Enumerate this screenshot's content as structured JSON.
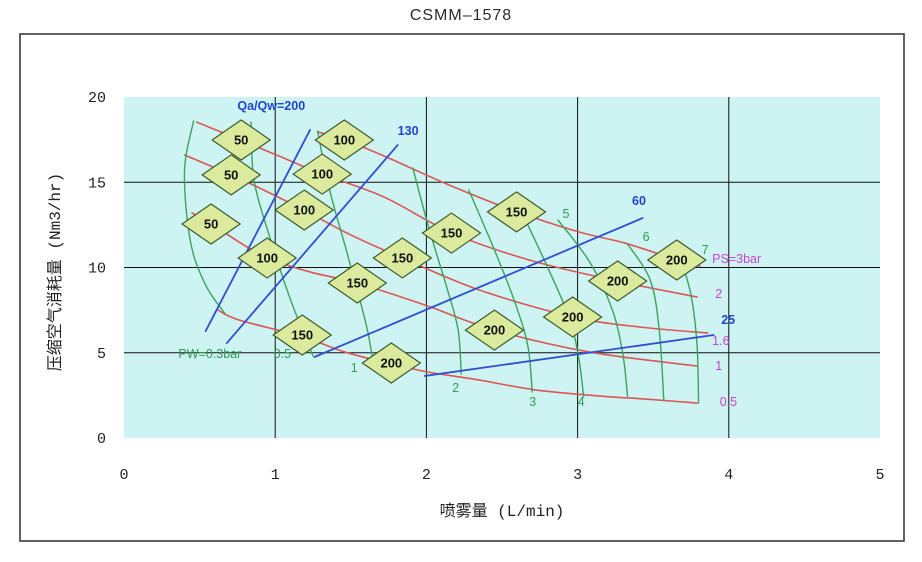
{
  "title": "CSMM–1578",
  "chart_data": {
    "type": "line",
    "title": "CSMM–1578",
    "xlabel": "喷雾量 (L/min)",
    "ylabel": "压缩空气消耗量 (Nm3/hr)",
    "xlim": [
      0,
      5
    ],
    "ylim": [
      0,
      20
    ],
    "xticks": [
      0,
      1,
      2,
      3,
      4,
      5
    ],
    "yticks": [
      0,
      5,
      10,
      15,
      20
    ],
    "grid": true,
    "legend_position": "none",
    "colors": {
      "plot_background": "#cdf3f3",
      "figure_border": "#3a3a3a",
      "grid": "#111111",
      "air_pressure_curves": "#dd5555",
      "air_pressure_labels": "#cc44cc",
      "water_pressure_curves": "#3aa45c",
      "water_pressure_labels": "#2e9e50",
      "ratio_lines": "#2f4fd0",
      "ratio_labels": "#2244cc",
      "marker_fill": "#dcea9e",
      "marker_stroke": "#3c5a2a"
    },
    "families": [
      {
        "name": "air-pressure-red",
        "meaning": "compressed air pressure PS (bar)",
        "color": "#dd5555",
        "label_color": "#cc44cc",
        "width": 1.6,
        "label_weight": 400,
        "curves": [
          {
            "label": "PS=3bar",
            "label_at": [
              3.89,
              10.26
            ],
            "points": [
              [
                1.28,
                17.95
              ],
              [
                1.46,
                17.48
              ],
              [
                1.72,
                16.54
              ],
              [
                2.15,
                14.84
              ],
              [
                2.6,
                13.26
              ],
              [
                3.01,
                12.08
              ],
              [
                3.31,
                11.44
              ],
              [
                3.66,
                10.44
              ],
              [
                3.81,
                10.09
              ]
            ]
          },
          {
            "label": "2",
            "label_at": [
              3.91,
              8.21
            ],
            "points": [
              [
                0.48,
                18.53
              ],
              [
                0.77,
                17.48
              ],
              [
                1.04,
                16.48
              ],
              [
                1.31,
                15.48
              ],
              [
                1.72,
                14.13
              ],
              [
                2.17,
                12.02
              ],
              [
                2.68,
                10.44
              ],
              [
                3.26,
                9.21
              ],
              [
                3.79,
                8.27
              ]
            ]
          },
          {
            "label": "1.6",
            "label_at": [
              3.89,
              5.45
            ],
            "points": [
              [
                0.4,
                16.6
              ],
              [
                0.71,
                15.43
              ],
              [
                0.95,
                14.43
              ],
              [
                1.19,
                13.37
              ],
              [
                1.5,
                11.91
              ],
              [
                1.84,
                10.56
              ],
              [
                2.35,
                8.68
              ],
              [
                2.97,
                7.1
              ],
              [
                3.41,
                6.51
              ],
              [
                3.86,
                6.16
              ]
            ]
          },
          {
            "label": "1",
            "label_at": [
              3.91,
              3.99
            ],
            "points": [
              [
                0.45,
                13.2
              ],
              [
                0.58,
                12.55
              ],
              [
                0.76,
                11.5
              ],
              [
                0.95,
                10.56
              ],
              [
                1.23,
                9.74
              ],
              [
                1.54,
                9.09
              ],
              [
                1.99,
                7.8
              ],
              [
                2.45,
                6.33
              ],
              [
                3.08,
                5.04
              ],
              [
                3.79,
                4.22
              ]
            ]
          },
          {
            "label": "0.5",
            "label_at": [
              3.94,
              1.88
            ],
            "points": [
              [
                0.62,
                7.51
              ],
              [
                0.76,
                6.92
              ],
              [
                1.18,
                5.95
              ],
              [
                1.46,
                5.04
              ],
              [
                1.77,
                4.35
              ],
              [
                2.01,
                3.87
              ],
              [
                2.35,
                3.4
              ],
              [
                2.72,
                2.82
              ],
              [
                3.15,
                2.46
              ],
              [
                3.44,
                2.29
              ],
              [
                3.79,
                2.05
              ]
            ]
          }
        ]
      },
      {
        "name": "water-pressure-green",
        "meaning": "water pressure PW (bar)",
        "color": "#3aa45c",
        "label_color": "#2e9e50",
        "width": 1.4,
        "label_weight": 400,
        "curves": [
          {
            "label": "PW=0.3bar",
            "label_at": [
              0.36,
              4.69
            ],
            "points": [
              [
                0.46,
                18.59
              ],
              [
                0.4,
                15.6
              ],
              [
                0.44,
                11.5
              ],
              [
                0.54,
                8.97
              ],
              [
                0.67,
                7.27
              ]
            ]
          },
          {
            "label": "0.5",
            "label_at": [
              0.99,
              4.69
            ],
            "points": [
              [
                0.84,
                18.53
              ],
              [
                0.86,
                15.13
              ],
              [
                0.97,
                11.61
              ],
              [
                1.09,
                8.39
              ],
              [
                1.18,
                6.33
              ],
              [
                1.25,
                4.81
              ]
            ]
          },
          {
            "label": "1",
            "label_at": [
              1.5,
              3.87
            ],
            "points": [
              [
                1.28,
                18.0
              ],
              [
                1.36,
                14.55
              ],
              [
                1.47,
                11.03
              ],
              [
                1.56,
                8.09
              ],
              [
                1.61,
                6.33
              ],
              [
                1.64,
                4.87
              ]
            ]
          },
          {
            "label": "2",
            "label_at": [
              2.17,
              2.7
            ],
            "points": [
              [
                1.91,
                15.84
              ],
              [
                2.02,
                12.2
              ],
              [
                2.14,
                8.68
              ],
              [
                2.21,
                6.33
              ],
              [
                2.23,
                3.75
              ]
            ]
          },
          {
            "label": "3",
            "label_at": [
              2.68,
              1.88
            ],
            "points": [
              [
                2.28,
                14.55
              ],
              [
                2.45,
                11.03
              ],
              [
                2.58,
                8.09
              ],
              [
                2.67,
                5.45
              ],
              [
                2.7,
                2.7
              ]
            ]
          },
          {
            "label": "4",
            "label_at": [
              3.0,
              1.88
            ],
            "points": [
              [
                2.63,
                13.26
              ],
              [
                2.81,
                9.85
              ],
              [
                2.95,
                6.92
              ],
              [
                3.01,
                4.57
              ],
              [
                3.04,
                2.4
              ]
            ]
          },
          {
            "label": "5",
            "label_at": [
              2.9,
              12.9
            ],
            "points": [
              [
                2.87,
                12.79
              ],
              [
                3.08,
                10.32
              ],
              [
                3.23,
                7.51
              ],
              [
                3.3,
                4.87
              ],
              [
                3.33,
                2.46
              ]
            ]
          },
          {
            "label": "6",
            "label_at": [
              3.43,
              11.55
            ],
            "points": [
              [
                3.33,
                11.38
              ],
              [
                3.48,
                9.27
              ],
              [
                3.54,
                6.33
              ],
              [
                3.57,
                2.23
              ]
            ]
          },
          {
            "label": "7",
            "label_at": [
              3.82,
              10.79
            ],
            "points": [
              [
                3.68,
                10.56
              ],
              [
                3.75,
                8.39
              ],
              [
                3.79,
                5.45
              ],
              [
                3.8,
                2.05
              ]
            ]
          }
        ]
      },
      {
        "name": "air-water-ratio-blue",
        "meaning": "air/water ratio Qa/Qw",
        "color": "#2f4fd0",
        "label_color": "#2244cc",
        "width": 1.8,
        "label_weight": 700,
        "curves": [
          {
            "label": "Qa/Qw=200",
            "label_at": [
              0.75,
              19.24
            ],
            "points": [
              [
                0.54,
                6.27
              ],
              [
                1.23,
                18.06
              ]
            ]
          },
          {
            "label": "130",
            "label_at": [
              1.81,
              17.77
            ],
            "points": [
              [
                0.68,
                5.57
              ],
              [
                1.81,
                17.18
              ]
            ]
          },
          {
            "label": "60",
            "label_at": [
              3.36,
              13.67
            ],
            "points": [
              [
                1.26,
                4.75
              ],
              [
                3.43,
                12.9
              ]
            ]
          },
          {
            "label": "25",
            "label_at": [
              3.95,
              6.69
            ],
            "points": [
              [
                1.99,
                3.64
              ],
              [
                3.9,
                6.04
              ]
            ]
          }
        ]
      }
    ],
    "markers": {
      "shape": "diamond",
      "meaning": "mean droplet diameter (μm)",
      "fill": "#dcea9e",
      "stroke": "#3c5a2a",
      "items": [
        {
          "value": "50",
          "x": 0.775,
          "y": 17.48
        },
        {
          "value": "50",
          "x": 0.709,
          "y": 15.43
        },
        {
          "value": "50",
          "x": 0.576,
          "y": 12.55
        },
        {
          "value": "100",
          "x": 1.457,
          "y": 17.48
        },
        {
          "value": "100",
          "x": 1.311,
          "y": 15.48
        },
        {
          "value": "100",
          "x": 1.192,
          "y": 13.37
        },
        {
          "value": "100",
          "x": 0.947,
          "y": 10.56
        },
        {
          "value": "150",
          "x": 2.596,
          "y": 13.26
        },
        {
          "value": "150",
          "x": 2.166,
          "y": 12.02
        },
        {
          "value": "150",
          "x": 1.841,
          "y": 10.56
        },
        {
          "value": "150",
          "x": 1.543,
          "y": 9.09
        },
        {
          "value": "150",
          "x": 1.179,
          "y": 6.04
        },
        {
          "value": "200",
          "x": 3.656,
          "y": 10.44
        },
        {
          "value": "200",
          "x": 3.265,
          "y": 9.21
        },
        {
          "value": "200",
          "x": 2.967,
          "y": 7.1
        },
        {
          "value": "200",
          "x": 2.45,
          "y": 6.33
        },
        {
          "value": "200",
          "x": 1.768,
          "y": 4.4
        }
      ]
    }
  }
}
